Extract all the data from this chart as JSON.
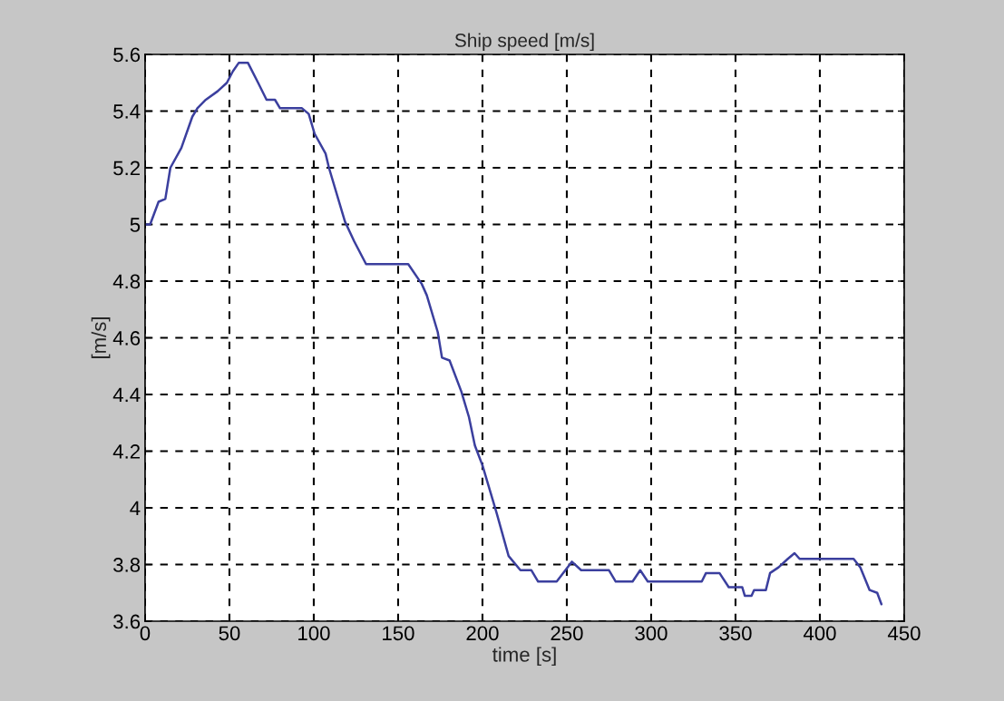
{
  "chart_data": {
    "type": "line",
    "title": "Ship speed [m/s]",
    "xlabel": "time [s]",
    "ylabel": "[m/s]",
    "x": [
      0,
      3,
      8,
      12,
      15,
      21.5,
      28,
      31,
      36,
      43,
      48.5,
      52,
      55.5,
      61,
      67,
      72,
      77,
      80,
      93,
      97,
      100.5,
      107,
      109,
      118.5,
      124,
      131,
      156,
      164,
      167,
      173.5,
      176,
      180.5,
      187.5,
      192,
      195.5,
      200,
      208.5,
      215.5,
      222.5,
      229,
      233,
      244,
      253,
      258.5,
      275,
      279,
      289,
      293.5,
      298,
      330,
      332.5,
      340.5,
      346,
      354,
      355.5,
      359.5,
      361,
      368,
      370.5,
      375.5,
      381,
      385,
      388,
      420,
      424,
      429.5,
      434,
      436.5
    ],
    "values": [
      5.0,
      5.0,
      5.08,
      5.09,
      5.2,
      5.27,
      5.38,
      5.41,
      5.44,
      5.47,
      5.5,
      5.54,
      5.57,
      5.57,
      5.5,
      5.44,
      5.44,
      5.41,
      5.41,
      5.39,
      5.32,
      5.25,
      5.2,
      5.01,
      4.94,
      4.86,
      4.86,
      4.79,
      4.75,
      4.62,
      4.53,
      4.52,
      4.41,
      4.32,
      4.22,
      4.15,
      3.98,
      3.83,
      3.78,
      3.78,
      3.74,
      3.74,
      3.81,
      3.78,
      3.78,
      3.74,
      3.74,
      3.78,
      3.74,
      3.74,
      3.77,
      3.77,
      3.72,
      3.72,
      3.69,
      3.69,
      3.71,
      3.71,
      3.77,
      3.79,
      3.82,
      3.84,
      3.82,
      3.82,
      3.79,
      3.71,
      3.7,
      3.66
    ],
    "color": "#3b3f9e",
    "xlim": [
      0,
      450
    ],
    "xticks": [
      0,
      50,
      100,
      150,
      200,
      250,
      300,
      350,
      400,
      450
    ],
    "ylim": [
      3.6,
      5.6
    ],
    "yticks": [
      3.6,
      3.8,
      4,
      4.2,
      4.4,
      4.6,
      4.8,
      5,
      5.2,
      5.4,
      5.6
    ],
    "grid": true
  }
}
